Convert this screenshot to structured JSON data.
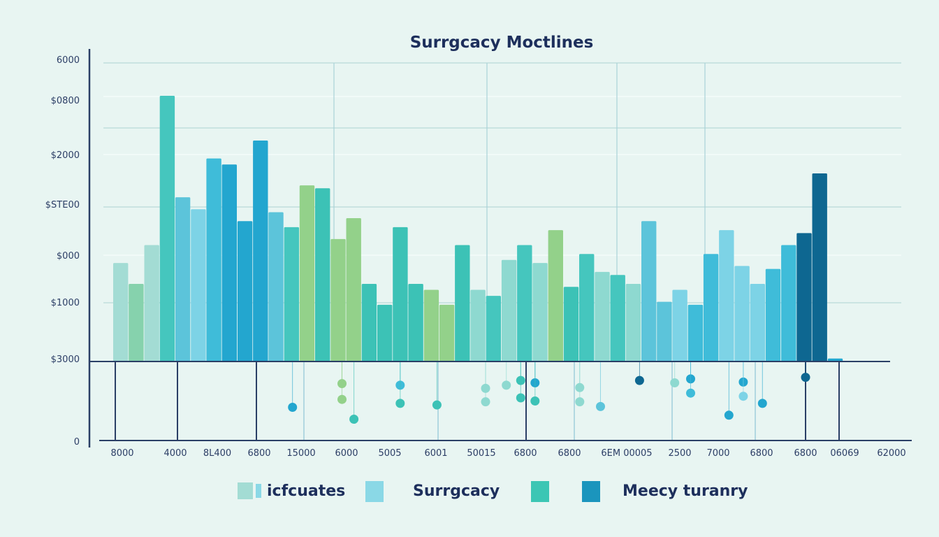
{
  "chart_data": {
    "type": "bar",
    "title": "Surrgcacy Moctlines",
    "xlabel": "",
    "ylabel": "",
    "grid": true,
    "legend_position": "bottom",
    "y_tick_labels": [
      "6000",
      "$0800",
      "$2000",
      "$STE00",
      "$000",
      "$1000",
      "$3000",
      "0"
    ],
    "x_tick_labels": [
      "8000",
      "4000",
      "8L400",
      "6800",
      "15000",
      "6000",
      "5005",
      "6001",
      "50015",
      "6800",
      "6800",
      "6EM 00005",
      "2500",
      "7000",
      "6800",
      "6800",
      "06069",
      "62000"
    ],
    "ylim": [
      0,
      100
    ],
    "colors": {
      "light_teal": "#a3dcd4",
      "mint_green": "#86d2ad",
      "teal": "#45c6be",
      "sky": "#5cc4da",
      "pale_sky": "#7dd3e6",
      "cyan": "#3fbcd9",
      "blue": "#23a6cf",
      "green": "#93d18a",
      "sea": "#3cc2b6",
      "navy": "#0e6791",
      "pale_teal": "#8ed9d0",
      "title_text": "#1d2f5c"
    },
    "bars": [
      {
        "value": 33,
        "color": "light_teal"
      },
      {
        "value": 26,
        "color": "mint_green"
      },
      {
        "value": 39,
        "color": "light_teal"
      },
      {
        "value": 89,
        "color": "teal"
      },
      {
        "value": 55,
        "color": "sky"
      },
      {
        "value": 51,
        "color": "pale_sky"
      },
      {
        "value": 68,
        "color": "cyan"
      },
      {
        "value": 66,
        "color": "blue"
      },
      {
        "value": 47,
        "color": "blue"
      },
      {
        "value": 74,
        "color": "blue"
      },
      {
        "value": 50,
        "color": "sky"
      },
      {
        "value": 45,
        "color": "teal"
      },
      {
        "value": 59,
        "color": "green"
      },
      {
        "value": 58,
        "color": "sea"
      },
      {
        "value": 41,
        "color": "green"
      },
      {
        "value": 48,
        "color": "green"
      },
      {
        "value": 26,
        "color": "sea"
      },
      {
        "value": 19,
        "color": "sea"
      },
      {
        "value": 45,
        "color": "sea"
      },
      {
        "value": 26,
        "color": "sea"
      },
      {
        "value": 24,
        "color": "green"
      },
      {
        "value": 19,
        "color": "green"
      },
      {
        "value": 39,
        "color": "sea"
      },
      {
        "value": 24,
        "color": "pale_teal"
      },
      {
        "value": 22,
        "color": "teal"
      },
      {
        "value": 34,
        "color": "pale_teal"
      },
      {
        "value": 39,
        "color": "teal"
      },
      {
        "value": 33,
        "color": "pale_teal"
      },
      {
        "value": 44,
        "color": "green"
      },
      {
        "value": 25,
        "color": "sea"
      },
      {
        "value": 36,
        "color": "teal"
      },
      {
        "value": 30,
        "color": "pale_teal"
      },
      {
        "value": 29,
        "color": "teal"
      },
      {
        "value": 26,
        "color": "pale_teal"
      },
      {
        "value": 47,
        "color": "sky"
      },
      {
        "value": 20,
        "color": "sky"
      },
      {
        "value": 24,
        "color": "pale_sky"
      },
      {
        "value": 19,
        "color": "cyan"
      },
      {
        "value": 36,
        "color": "cyan"
      },
      {
        "value": 44,
        "color": "pale_sky"
      },
      {
        "value": 32,
        "color": "pale_sky"
      },
      {
        "value": 26,
        "color": "pale_sky"
      },
      {
        "value": 31,
        "color": "cyan"
      },
      {
        "value": 39,
        "color": "cyan"
      },
      {
        "value": 43,
        "color": "navy"
      },
      {
        "value": 63,
        "color": "navy"
      },
      {
        "value": 1,
        "color": "blue"
      }
    ],
    "dots": [
      {
        "x": 0.237,
        "y": 0.58,
        "color": "blue"
      },
      {
        "x": 0.299,
        "y": 0.28,
        "color": "green"
      },
      {
        "x": 0.299,
        "y": 0.48,
        "color": "green"
      },
      {
        "x": 0.314,
        "y": 0.73,
        "color": "sea"
      },
      {
        "x": 0.372,
        "y": 0.3,
        "color": "cyan"
      },
      {
        "x": 0.372,
        "y": 0.53,
        "color": "sea"
      },
      {
        "x": 0.418,
        "y": 0.55,
        "color": "sea"
      },
      {
        "x": 0.479,
        "y": 0.34,
        "color": "pale_teal"
      },
      {
        "x": 0.479,
        "y": 0.51,
        "color": "pale_teal"
      },
      {
        "x": 0.505,
        "y": 0.3,
        "color": "pale_teal"
      },
      {
        "x": 0.523,
        "y": 0.24,
        "color": "sea"
      },
      {
        "x": 0.523,
        "y": 0.46,
        "color": "sea"
      },
      {
        "x": 0.541,
        "y": 0.27,
        "color": "blue"
      },
      {
        "x": 0.541,
        "y": 0.5,
        "color": "sea"
      },
      {
        "x": 0.597,
        "y": 0.33,
        "color": "pale_teal"
      },
      {
        "x": 0.597,
        "y": 0.51,
        "color": "pale_teal"
      },
      {
        "x": 0.623,
        "y": 0.57,
        "color": "sky"
      },
      {
        "x": 0.672,
        "y": 0.24,
        "color": "navy"
      },
      {
        "x": 0.716,
        "y": 0.27,
        "color": "pale_teal"
      },
      {
        "x": 0.736,
        "y": 0.22,
        "color": "blue"
      },
      {
        "x": 0.736,
        "y": 0.4,
        "color": "cyan"
      },
      {
        "x": 0.784,
        "y": 0.68,
        "color": "blue"
      },
      {
        "x": 0.802,
        "y": 0.26,
        "color": "blue"
      },
      {
        "x": 0.802,
        "y": 0.44,
        "color": "pale_sky"
      },
      {
        "x": 0.826,
        "y": 0.53,
        "color": "blue"
      },
      {
        "x": 0.88,
        "y": 0.2,
        "color": "navy"
      }
    ]
  },
  "legend": [
    {
      "label": "icfcuates",
      "color": "#a3dcd4"
    },
    {
      "label": "Surrgcacy",
      "color": "#8ad8e6"
    },
    {
      "label": "",
      "color": "#3cc6b4"
    },
    {
      "label": "Meecy turanry",
      "color": "#1b95bd"
    }
  ]
}
